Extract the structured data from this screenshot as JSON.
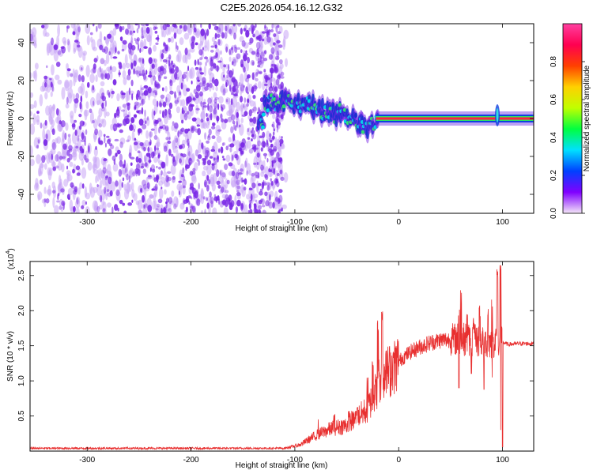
{
  "title": "C2E5.2026.054.16.12.G32",
  "colors": {
    "signal": "#e83030",
    "noise": "#7a28e6",
    "noise_light": "#c9a6f5",
    "axis": "#000000"
  },
  "chart_data": [
    {
      "type": "heatmap",
      "name": "spectrogram",
      "title": "C2E5.2026.054.16.12.G32",
      "xlabel": "Height of straight line (km)",
      "ylabel": "Frequency (Hz)",
      "xlim": [
        -355,
        130
      ],
      "ylim": [
        -50,
        50
      ],
      "x_ticks": [
        -300,
        -200,
        -100,
        0,
        100
      ],
      "y_ticks": [
        -40,
        -20,
        0,
        20,
        40
      ],
      "colorbar": {
        "label": "Normalized spectral amplitude",
        "range": [
          0.0,
          1.0
        ],
        "ticks": [
          "0.0",
          "0.2",
          "0.4",
          "0.6",
          "0.8"
        ],
        "colormap": [
          "#f4e6f8",
          "#8000ff",
          "#0040ff",
          "#00e0ff",
          "#00ff40",
          "#c0ff00",
          "#ffd000",
          "#ff4000",
          "#ff0050",
          "#ff40a0"
        ]
      },
      "features": {
        "noise_band_x": [
          -355,
          -112
        ],
        "narrowband_track": [
          {
            "x": -130,
            "y": 8
          },
          {
            "x": -115,
            "y": 9
          },
          {
            "x": -100,
            "y": 8
          },
          {
            "x": -85,
            "y": 7
          },
          {
            "x": -70,
            "y": 3
          },
          {
            "x": -55,
            "y": 2
          },
          {
            "x": -40,
            "y": -2
          },
          {
            "x": -30,
            "y": -4
          },
          {
            "x": -20,
            "y": 0
          },
          {
            "x": -10,
            "y": 1
          },
          {
            "x": 0,
            "y": 2
          },
          {
            "x": 20,
            "y": 1
          },
          {
            "x": 60,
            "y": 0
          },
          {
            "x": 95,
            "y": 1
          },
          {
            "x": 130,
            "y": 0
          }
        ]
      }
    },
    {
      "type": "line",
      "name": "snr",
      "xlabel": "Height of straight line (km)",
      "ylabel": "SNR (10 * v/v)",
      "y_scale_label": "(x10",
      "y_scale_exp": "4",
      "xlim": [
        -355,
        130
      ],
      "ylim": [
        0,
        27000
      ],
      "x_ticks": [
        -300,
        -200,
        -100,
        0,
        100
      ],
      "y_ticks": [
        {
          "value": 5000,
          "label": "0.5"
        },
        {
          "value": 10000,
          "label": "1.0"
        },
        {
          "value": 15000,
          "label": "1.5"
        },
        {
          "value": 20000,
          "label": "2.0"
        },
        {
          "value": 25000,
          "label": "2.5"
        }
      ],
      "series": [
        {
          "name": "SNR",
          "x": [
            -355,
            -110,
            -95,
            -80,
            -65,
            -50,
            -40,
            -30,
            -22,
            -18,
            -15,
            -8,
            0,
            10,
            20,
            30,
            40,
            50,
            60,
            70,
            80,
            90,
            95,
            100,
            105,
            115,
            130
          ],
          "y": [
            400,
            400,
            900,
            2200,
            3200,
            3700,
            4800,
            6000,
            8500,
            10500,
            11000,
            11500,
            12800,
            14000,
            14800,
            15400,
            15800,
            15900,
            16000,
            15800,
            15600,
            15400,
            16000,
            15500,
            15200,
            15300,
            15300
          ],
          "spikes": [
            {
              "x": -78,
              "y": 4800
            },
            {
              "x": -62,
              "y": 5200
            },
            {
              "x": -48,
              "y": 5800
            },
            {
              "x": -40,
              "y": 6600
            },
            {
              "x": -30,
              "y": 10800
            },
            {
              "x": -25,
              "y": 13000
            },
            {
              "x": -20,
              "y": 18800
            },
            {
              "x": -16,
              "y": 20500
            },
            {
              "x": -12,
              "y": 15000
            },
            {
              "x": -5,
              "y": 14200
            },
            {
              "x": 58,
              "y": 20800
            },
            {
              "x": 60,
              "y": 23300
            },
            {
              "x": 66,
              "y": 19800
            },
            {
              "x": 72,
              "y": 19000
            },
            {
              "x": 78,
              "y": 21200
            },
            {
              "x": 86,
              "y": 21000
            },
            {
              "x": 90,
              "y": 22800
            },
            {
              "x": 95,
              "y": 26000
            },
            {
              "x": 98,
              "y": 27000
            }
          ],
          "dips": [
            {
              "x": 58,
              "y": 9000
            },
            {
              "x": 70,
              "y": 11000
            },
            {
              "x": 82,
              "y": 8800
            },
            {
              "x": 90,
              "y": 10500
            },
            {
              "x": 98,
              "y": 3000
            },
            {
              "x": 100,
              "y": 600
            }
          ]
        }
      ]
    }
  ]
}
